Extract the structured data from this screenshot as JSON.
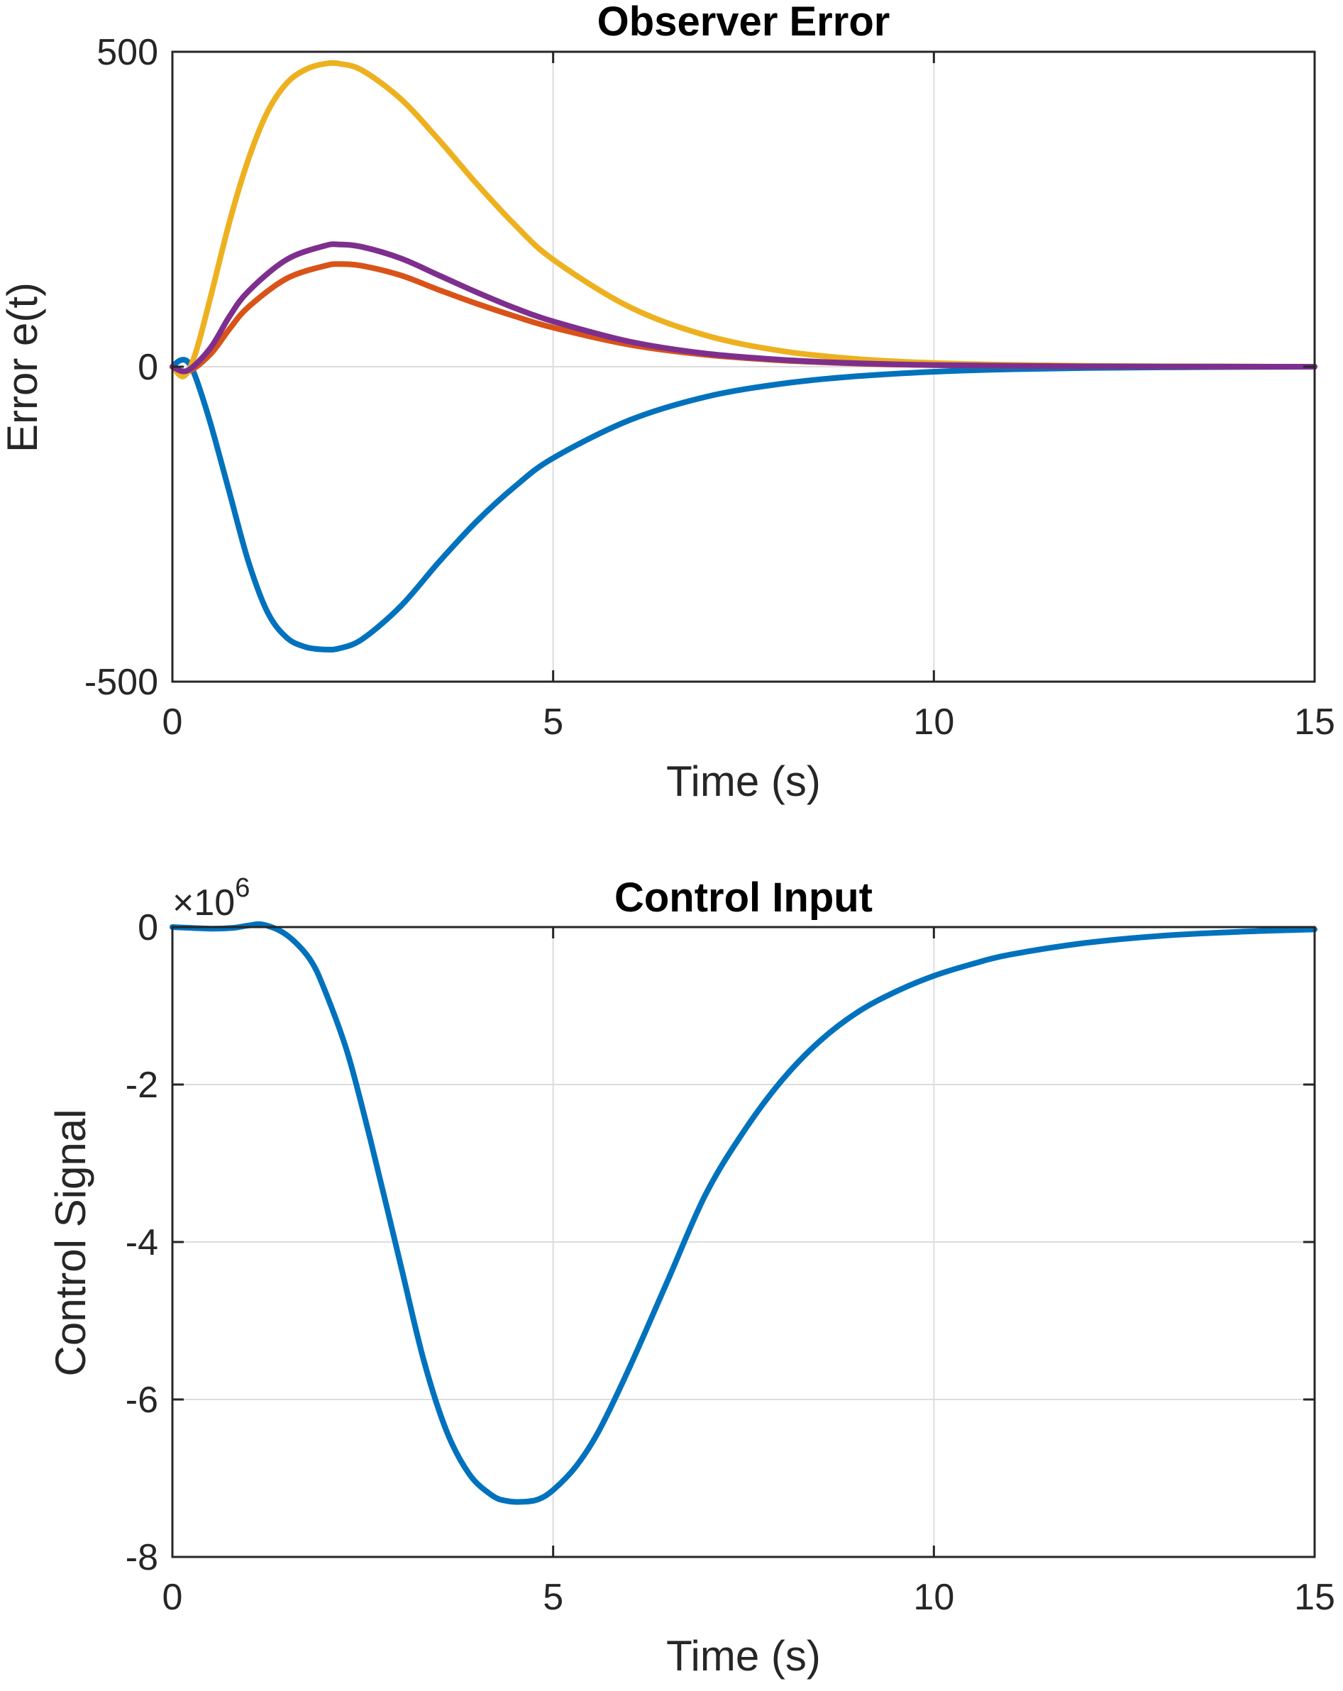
{
  "chart_data": [
    {
      "type": "line",
      "title": "Observer Error",
      "xlabel": "Time (s)",
      "ylabel": "Error e(t)",
      "xlim": [
        0,
        15
      ],
      "ylim": [
        -500,
        500
      ],
      "xticks": [
        0,
        5,
        10,
        15
      ],
      "yticks": [
        -500,
        0,
        500
      ],
      "xtick_labels": [
        "0",
        "5",
        "10",
        "15"
      ],
      "ytick_labels": [
        "-500",
        "0",
        "500"
      ],
      "grid": true,
      "series": [
        {
          "color": "#0072BD",
          "x": [
            0,
            0.1,
            0.2,
            0.3,
            0.5,
            0.75,
            1.0,
            1.25,
            1.5,
            1.75,
            2.0,
            2.2,
            2.5,
            3.0,
            3.5,
            4.0,
            4.5,
            5.0,
            6.0,
            7.0,
            8.0,
            9.0,
            10.0,
            11.0,
            12.0,
            13.0,
            14.0,
            15.0
          ],
          "y": [
            0,
            10,
            8,
            -15,
            -90,
            -200,
            -310,
            -390,
            -430,
            -445,
            -449,
            -447,
            -432,
            -380,
            -310,
            -245,
            -190,
            -145,
            -85,
            -48,
            -27,
            -15,
            -8,
            -4,
            -2,
            -1,
            -0.5,
            0
          ]
        },
        {
          "color": "#D95319",
          "x": [
            0,
            0.2,
            0.5,
            0.75,
            1.0,
            1.5,
            2.0,
            2.2,
            2.5,
            3.0,
            3.5,
            4.0,
            4.5,
            5.0,
            6.0,
            7.0,
            8.0,
            9.0,
            10.0,
            11.0,
            12.0,
            13.0,
            14.0,
            15.0
          ],
          "y": [
            0,
            -8,
            20,
            60,
            95,
            140,
            160,
            163,
            160,
            145,
            122,
            100,
            80,
            62,
            35,
            19,
            10,
            5,
            2.5,
            1.2,
            0.6,
            0.3,
            0.1,
            0
          ]
        },
        {
          "color": "#EDB120",
          "x": [
            0,
            0.15,
            0.3,
            0.5,
            0.75,
            1.0,
            1.25,
            1.5,
            1.75,
            2.0,
            2.2,
            2.5,
            3.0,
            3.5,
            4.0,
            4.5,
            5.0,
            6.0,
            7.0,
            8.0,
            9.0,
            10.0,
            11.0,
            12.0,
            13.0,
            14.0,
            15.0
          ],
          "y": [
            0,
            -15,
            20,
            110,
            230,
            330,
            405,
            450,
            472,
            481,
            481,
            470,
            425,
            360,
            290,
            225,
            170,
            95,
            50,
            25,
            12,
            6,
            3,
            1.5,
            0.7,
            0.3,
            0
          ]
        },
        {
          "color": "#7E2F8E",
          "x": [
            0,
            0.2,
            0.5,
            0.75,
            1.0,
            1.5,
            2.0,
            2.2,
            2.5,
            3.0,
            3.5,
            4.0,
            4.5,
            5.0,
            6.0,
            7.0,
            8.0,
            9.0,
            10.0,
            11.0,
            12.0,
            13.0,
            14.0,
            15.0
          ],
          "y": [
            0,
            -6,
            30,
            80,
            120,
            170,
            192,
            194,
            190,
            172,
            145,
            118,
            93,
            72,
            40,
            21,
            11,
            5.5,
            2.7,
            1.3,
            0.6,
            0.3,
            0.1,
            0
          ]
        }
      ]
    },
    {
      "type": "line",
      "title": "Control Input",
      "xlabel": "Time (s)",
      "ylabel": "Control Signal",
      "exponent_base": "×10",
      "exponent_power": "6",
      "xlim": [
        0,
        15
      ],
      "ylim": [
        -8,
        0
      ],
      "xticks": [
        0,
        5,
        10,
        15
      ],
      "yticks": [
        -8,
        -6,
        -4,
        -2,
        0
      ],
      "xtick_labels": [
        "0",
        "5",
        "10",
        "15"
      ],
      "ytick_labels": [
        "-8",
        "-6",
        "-4",
        "-2",
        "0"
      ],
      "grid": true,
      "series": [
        {
          "color": "#0072BD",
          "x": [
            0,
            0.5,
            0.8,
            1.0,
            1.2,
            1.5,
            1.8,
            2.0,
            2.3,
            2.6,
            3.0,
            3.3,
            3.6,
            3.9,
            4.2,
            4.4,
            4.6,
            4.8,
            5.0,
            5.3,
            5.6,
            6.0,
            6.5,
            7.0,
            7.5,
            8.0,
            8.5,
            9.0,
            9.5,
            10.0,
            10.5,
            11.0,
            12.0,
            13.0,
            14.0,
            15.0
          ],
          "y": [
            0,
            -0.02,
            -0.01,
            0.02,
            0.03,
            -0.1,
            -0.4,
            -0.8,
            -1.6,
            -2.7,
            -4.3,
            -5.5,
            -6.4,
            -6.95,
            -7.22,
            -7.29,
            -7.3,
            -7.27,
            -7.15,
            -6.85,
            -6.4,
            -5.6,
            -4.5,
            -3.4,
            -2.6,
            -1.95,
            -1.45,
            -1.08,
            -0.82,
            -0.62,
            -0.47,
            -0.35,
            -0.2,
            -0.11,
            -0.06,
            -0.03
          ]
        }
      ]
    }
  ]
}
